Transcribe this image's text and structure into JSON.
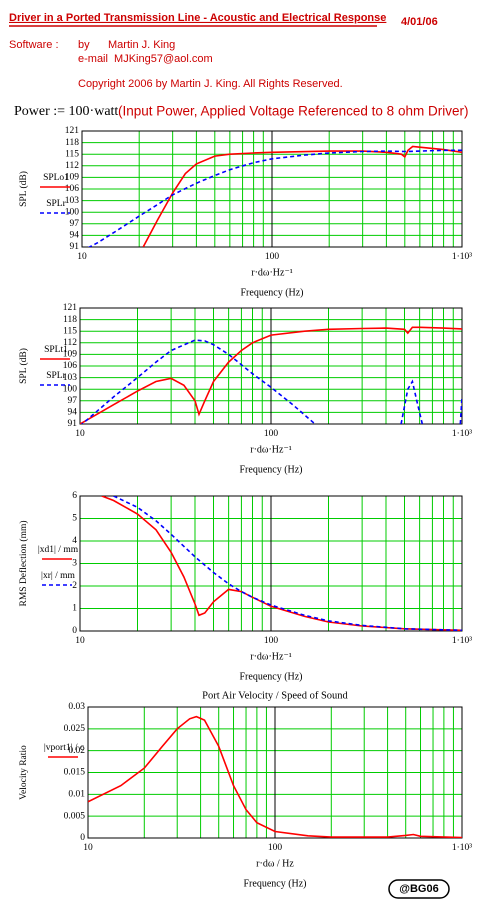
{
  "header": {
    "title": "Driver in a Ported Transmission Line - Acoustic and Electrical Response",
    "date": "4/01/06",
    "software_label": "Software :",
    "by": "by",
    "author": "Martin J. King",
    "email": "e-mail  MJKing57@aol.com",
    "copyright": "Copyright 2006 by Martin J. King. All Rights Reserved."
  },
  "power": {
    "formula": "Power := 100·watt",
    "note": "(Input Power, Applied Voltage Referenced to 8 ohm Driver)"
  },
  "footer": {
    "badge": "@BG06"
  },
  "chart_data": [
    {
      "type": "line",
      "xlog": true,
      "grid": true,
      "grid_color": "#00cc00",
      "ylabel": "SPL (dB)",
      "xlabel": "r·dω·Hz⁻¹",
      "xtitle": "Frequency (Hz)",
      "xlim": [
        10,
        1000
      ],
      "xticks": [
        10,
        100,
        {
          "value": 1000,
          "label": "1·10³"
        }
      ],
      "ylim": [
        91,
        121
      ],
      "yticks": [
        91,
        94,
        97,
        100,
        103,
        106,
        109,
        112,
        115,
        118,
        121
      ],
      "series": [
        {
          "name": "SPLo1",
          "color": "#ff0000",
          "dash": false,
          "x": [
            21,
            25,
            30,
            35,
            40,
            50,
            60,
            80,
            100,
            200,
            300,
            400,
            480,
            500,
            520,
            550,
            600,
            800,
            1000
          ],
          "values": [
            91,
            98,
            105,
            110,
            112.5,
            114.5,
            115,
            115.3,
            115.5,
            115.8,
            115.8,
            115.5,
            115,
            114.3,
            116,
            117,
            116.8,
            116.2,
            115.5
          ]
        },
        {
          "name": "SPLr",
          "color": "#0000ff",
          "dash": true,
          "x": [
            10,
            12,
            15,
            20,
            25,
            30,
            40,
            50,
            60,
            80,
            100,
            150,
            200,
            300,
            400,
            500,
            600,
            800,
            1000
          ],
          "values": [
            90,
            92,
            95,
            99,
            102,
            104.5,
            107.5,
            109.5,
            111,
            112.8,
            113.8,
            114.8,
            115.3,
            115.7,
            115.8,
            115.7,
            115.8,
            116,
            116
          ]
        }
      ]
    },
    {
      "type": "line",
      "xlog": true,
      "grid": true,
      "grid_color": "#00cc00",
      "ylabel": "SPL (dB)",
      "xlabel": "r·dω·Hz⁻¹",
      "xtitle": "Frequency (Hz)",
      "xlim": [
        10,
        1000
      ],
      "xticks": [
        10,
        100,
        {
          "value": 1000,
          "label": "1·10³"
        }
      ],
      "ylim": [
        91,
        121
      ],
      "yticks": [
        91,
        94,
        97,
        100,
        103,
        106,
        109,
        112,
        115,
        118,
        121
      ],
      "series": [
        {
          "name": "SPLt1",
          "color": "#ff0000",
          "dash": false,
          "x": [
            10,
            15,
            20,
            25,
            30,
            35,
            40,
            42,
            45,
            50,
            60,
            70,
            80,
            100,
            150,
            200,
            300,
            400,
            500,
            520,
            550,
            600,
            800,
            1000
          ],
          "values": [
            91,
            96,
            99.5,
            102,
            102.8,
            101,
            97,
            93.5,
            97,
            102,
            107,
            110,
            112,
            114,
            115,
            115.5,
            115.7,
            115.8,
            115.5,
            114.5,
            116,
            116,
            115.8,
            115.6
          ]
        },
        {
          "name": "SPLr",
          "color": "#0000ff",
          "dash": true,
          "x": [
            10,
            15,
            20,
            25,
            30,
            40,
            45,
            50,
            60,
            80,
            100,
            130,
            170,
            300,
            480,
            520,
            550,
            580,
            620,
            700,
            980,
            1000
          ],
          "values": [
            90.5,
            98,
            103,
            107,
            110,
            112.7,
            112.5,
            111.5,
            109,
            104,
            100.5,
            96,
            91,
            null,
            91,
            100,
            102,
            97,
            91,
            null,
            91,
            98
          ]
        }
      ]
    },
    {
      "type": "line",
      "xlog": true,
      "grid": true,
      "grid_color": "#00cc00",
      "ylabel": "RMS Deflection (mm)",
      "xlabel": "r·dω·Hz⁻¹",
      "xtitle": "Frequency (Hz)",
      "xlim": [
        10,
        1000
      ],
      "xticks": [
        10,
        100,
        {
          "value": 1000,
          "label": "1·10³"
        }
      ],
      "ylim": [
        0,
        6
      ],
      "yticks": [
        0,
        1,
        2,
        3,
        4,
        5,
        6
      ],
      "series": [
        {
          "name": "|xd1| / mm",
          "color": "#ff0000",
          "dash": false,
          "x": [
            13,
            15,
            20,
            25,
            30,
            35,
            40,
            42,
            45,
            50,
            60,
            70,
            80,
            100,
            150,
            200,
            300,
            500,
            1000
          ],
          "values": [
            6,
            5.8,
            5.2,
            4.5,
            3.5,
            2.4,
            1.2,
            0.7,
            0.8,
            1.3,
            1.85,
            1.75,
            1.5,
            1.1,
            0.65,
            0.4,
            0.22,
            0.1,
            0.03
          ]
        },
        {
          "name": "|xr| / mm",
          "color": "#0000ff",
          "dash": true,
          "x": [
            15,
            20,
            25,
            30,
            40,
            50,
            60,
            70,
            80,
            100,
            150,
            200,
            300,
            500,
            1000
          ],
          "values": [
            6,
            5.5,
            4.9,
            4.3,
            3.3,
            2.6,
            2.1,
            1.75,
            1.5,
            1.15,
            0.7,
            0.45,
            0.25,
            0.1,
            0.03
          ]
        }
      ]
    },
    {
      "type": "line",
      "title": "Port Air Velocity / Speed of Sound",
      "xlog": true,
      "grid": true,
      "grid_color": "#00cc00",
      "ylabel": "Velocity Ratio",
      "xlabel": "r·dω / Hz",
      "xtitle": "Frequency (Hz)",
      "xlim": [
        10,
        1000
      ],
      "xticks": [
        10,
        100,
        {
          "value": 1000,
          "label": "1·10³"
        }
      ],
      "ylim": [
        0,
        0.03
      ],
      "yticks": [
        0,
        0.005,
        0.01,
        0.015,
        0.02,
        0.025,
        0.03
      ],
      "series": [
        {
          "name": "|vport1| / c",
          "color": "#ff0000",
          "dash": false,
          "x": [
            10,
            15,
            20,
            25,
            30,
            35,
            38,
            42,
            50,
            60,
            70,
            80,
            100,
            150,
            200,
            400,
            500,
            550,
            600,
            1000
          ],
          "values": [
            0.0083,
            0.012,
            0.016,
            0.021,
            0.025,
            0.0273,
            0.0278,
            0.027,
            0.021,
            0.012,
            0.0065,
            0.0035,
            0.0015,
            0.0005,
            0.0002,
            0.0002,
            0.0006,
            0.0008,
            0.0004,
            0.0001
          ]
        }
      ]
    }
  ]
}
